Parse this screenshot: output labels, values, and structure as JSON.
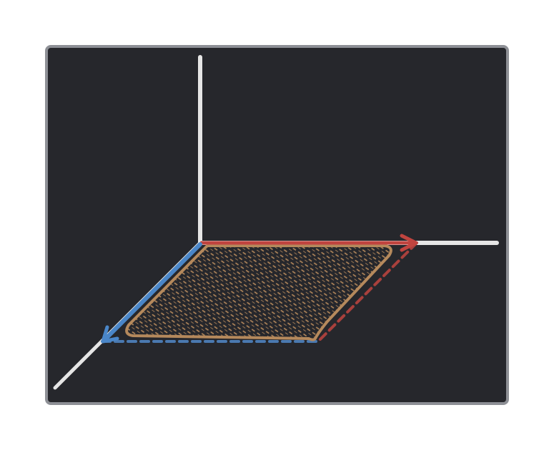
{
  "diagram": {
    "kind": "3d-axes-with-vector-parallelogram",
    "colors": {
      "panel_bg": "#26272c",
      "panel_border": "#8e9096",
      "axis": "#e6e6e6",
      "vector_x": "#c0443f",
      "vector_y": "#4a86c8",
      "parallelogram": "#b5895c"
    },
    "elements": {
      "axes": [
        "vertical-axis",
        "horizontal-axis",
        "depth-axis"
      ],
      "vectors": [
        "red-vector",
        "blue-vector"
      ],
      "guides": [
        "red-dashed-guide",
        "blue-dashed-guide"
      ],
      "region": "hatched-parallelogram"
    }
  }
}
